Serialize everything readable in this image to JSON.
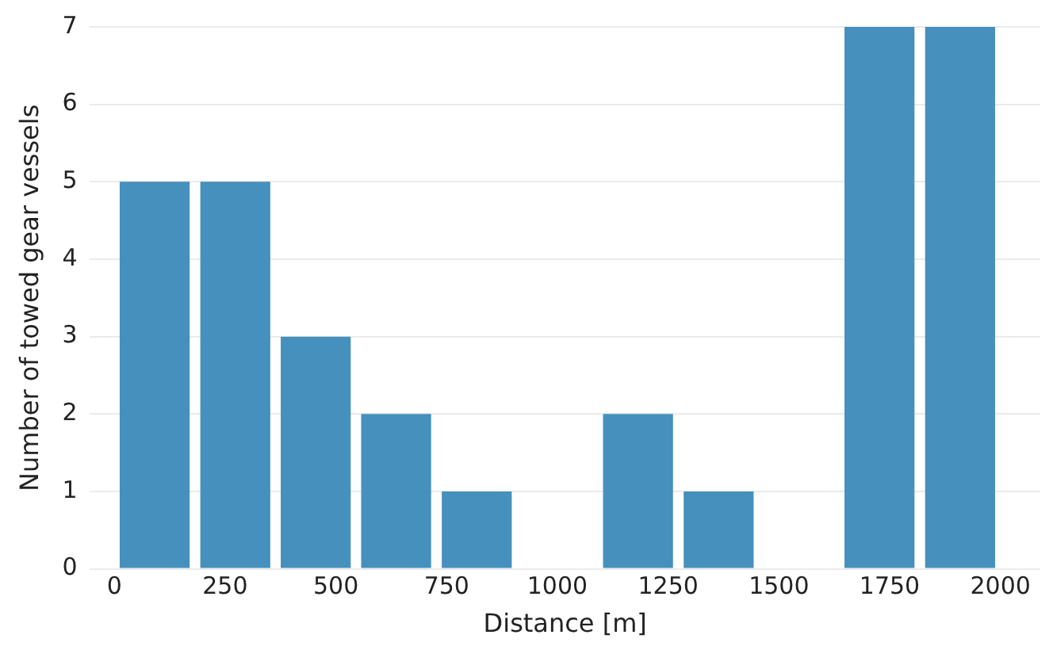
{
  "chart_data": {
    "type": "histogram",
    "xlabel": "Distance [m]",
    "ylabel": "Number of towed gear vessels",
    "bins": [
      0,
      182,
      364,
      545,
      727,
      909,
      1091,
      1273,
      1455,
      1636,
      1818,
      2000
    ],
    "values": [
      5,
      5,
      3,
      2,
      1,
      0,
      2,
      1,
      0,
      7,
      7
    ],
    "color": "#4590bd",
    "xlim": [
      -55,
      2090
    ],
    "xticks": [
      0,
      250,
      500,
      750,
      1000,
      1250,
      1500,
      1750,
      2000
    ],
    "ylim": [
      0,
      7
    ],
    "yticks": [
      0,
      1,
      2,
      3,
      4,
      5,
      6,
      7
    ],
    "grid": "y"
  }
}
